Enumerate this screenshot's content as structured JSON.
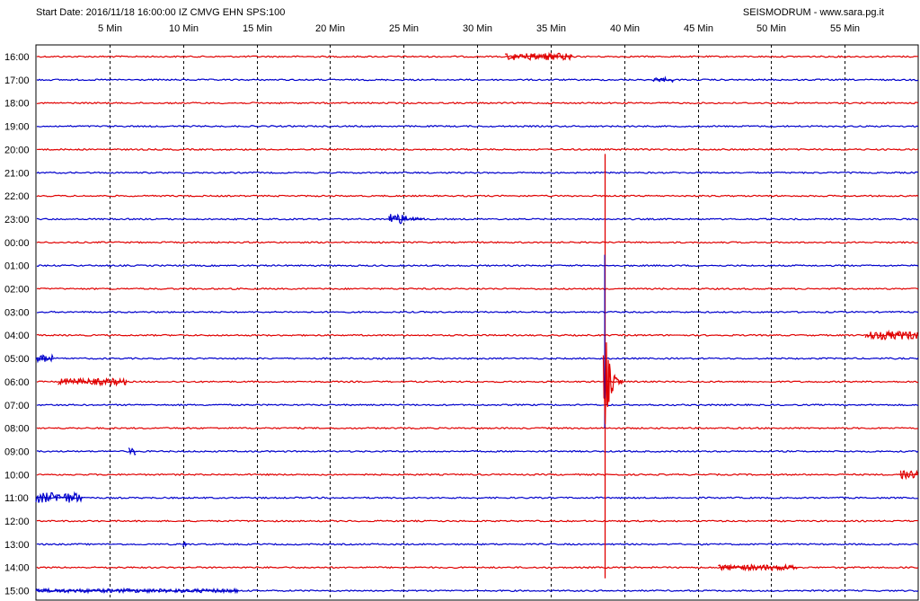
{
  "header": {
    "start_date": "Start Date: 2016/11/18 16:00:00 IZ CMVG EHN SPS:100",
    "credit": "SEISMODRUM - www.sara.pg.it"
  },
  "colors": {
    "red_trace": "#e00000",
    "blue_trace": "#0000cc",
    "grid": "#000000"
  },
  "chart_data": {
    "type": "line",
    "title": "",
    "xlabel": "",
    "ylabel": "",
    "x_unit": "Min",
    "xlim": [
      0,
      60
    ],
    "x_ticks": [
      5,
      10,
      15,
      20,
      25,
      30,
      35,
      40,
      45,
      50,
      55
    ],
    "x_tick_labels": [
      "5 Min",
      "10 Min",
      "15 Min",
      "20 Min",
      "25 Min",
      "30 Min",
      "35 Min",
      "40 Min",
      "45 Min",
      "50 Min",
      "55 Min"
    ],
    "grid": true,
    "rows": [
      {
        "label": "16:00",
        "color": "red"
      },
      {
        "label": "17:00",
        "color": "blue"
      },
      {
        "label": "18:00",
        "color": "red"
      },
      {
        "label": "19:00",
        "color": "blue"
      },
      {
        "label": "20:00",
        "color": "red"
      },
      {
        "label": "21:00",
        "color": "blue"
      },
      {
        "label": "22:00",
        "color": "red"
      },
      {
        "label": "23:00",
        "color": "blue"
      },
      {
        "label": "00:00",
        "color": "red"
      },
      {
        "label": "01:00",
        "color": "blue"
      },
      {
        "label": "02:00",
        "color": "red"
      },
      {
        "label": "03:00",
        "color": "blue"
      },
      {
        "label": "04:00",
        "color": "red"
      },
      {
        "label": "05:00",
        "color": "blue"
      },
      {
        "label": "06:00",
        "color": "red"
      },
      {
        "label": "07:00",
        "color": "blue"
      },
      {
        "label": "08:00",
        "color": "red"
      },
      {
        "label": "09:00",
        "color": "blue"
      },
      {
        "label": "10:00",
        "color": "red"
      },
      {
        "label": "11:00",
        "color": "blue"
      },
      {
        "label": "12:00",
        "color": "red"
      },
      {
        "label": "13:00",
        "color": "blue"
      },
      {
        "label": "14:00",
        "color": "red"
      },
      {
        "label": "15:00",
        "color": "blue"
      }
    ],
    "events": [
      {
        "row": "16:00",
        "start_min": 31.9,
        "end_min": 36.5,
        "amp": 0.15
      },
      {
        "row": "17:00",
        "start_min": 42.0,
        "end_min": 43.4,
        "amp": 0.1
      },
      {
        "row": "23:00",
        "start_min": 24.0,
        "end_min": 26.5,
        "amp": 0.3
      },
      {
        "row": "04:00",
        "start_min": 56.4,
        "end_min": 60.0,
        "amp": 0.18
      },
      {
        "row": "05:00",
        "start_min": 0.0,
        "end_min": 1.2,
        "amp": 0.15
      },
      {
        "row": "06:00",
        "start_min": 1.5,
        "end_min": 6.2,
        "amp": 0.14
      },
      {
        "row": "09:00",
        "start_min": 6.3,
        "end_min": 6.8,
        "amp": 0.16
      },
      {
        "row": "10:00",
        "start_min": 58.8,
        "end_min": 60.0,
        "amp": 0.2
      },
      {
        "row": "11:00",
        "start_min": 0.0,
        "end_min": 3.2,
        "amp": 0.22
      },
      {
        "row": "13:00",
        "start_min": 10.0,
        "end_min": 10.3,
        "amp": 0.12
      },
      {
        "row": "14:00",
        "start_min": 46.4,
        "end_min": 51.8,
        "amp": 0.12
      },
      {
        "row": "15:00",
        "start_min": 0.0,
        "end_min": 13.8,
        "amp": 0.08
      }
    ],
    "major_event": {
      "min": 38.7,
      "row_top": "20:00",
      "row_bottom": "14:00",
      "peak_row": "06:00"
    }
  }
}
